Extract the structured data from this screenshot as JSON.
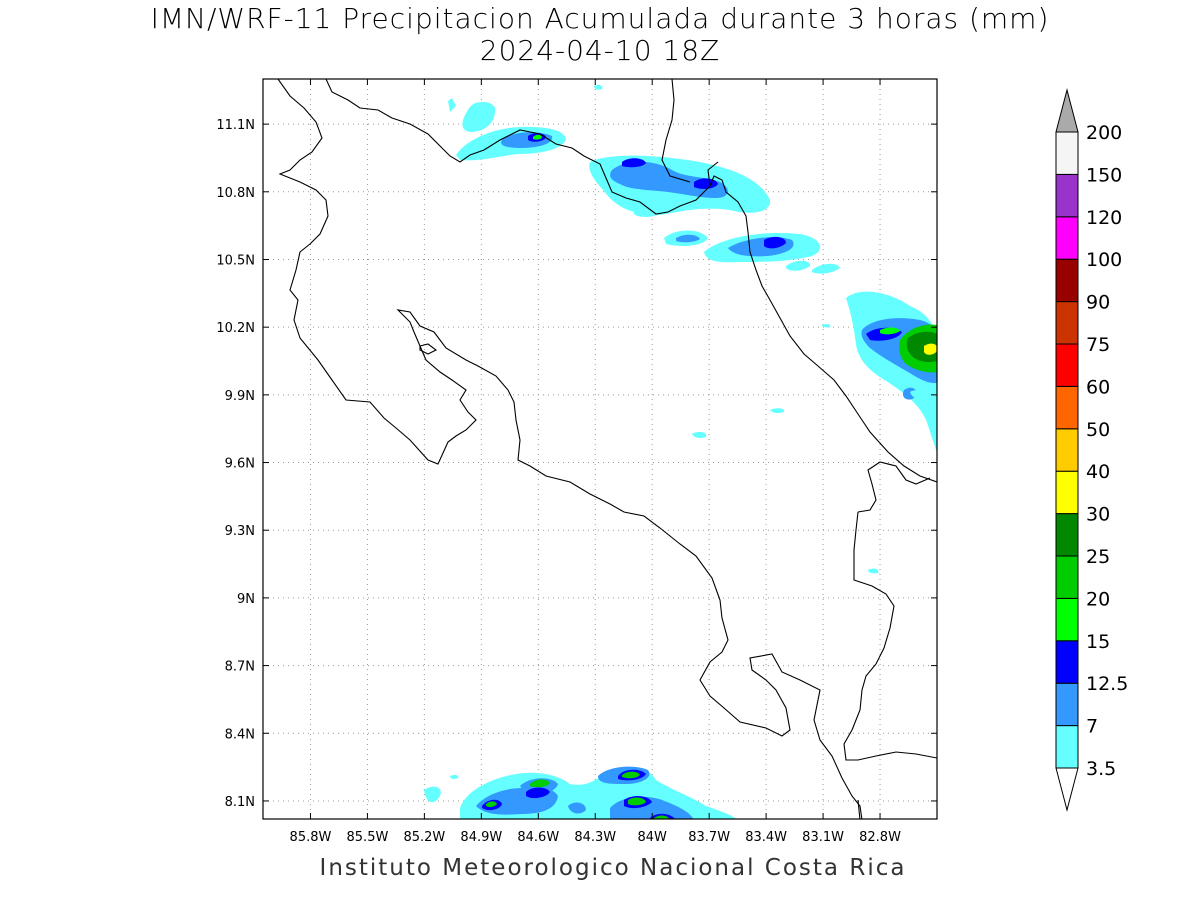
{
  "title": "IMN/WRF-11 Precipitacion Acumulada durante 3 horas (mm)",
  "subtitle": "2024-04-10 18Z",
  "footer": "Instituto Meteorologico Nacional Costa Rica",
  "map": {
    "lon_range": [
      -86.05,
      -82.5
    ],
    "lat_range": [
      8.02,
      11.3
    ],
    "lon_ticks": [
      "85.8W",
      "85.5W",
      "85.2W",
      "84.9W",
      "84.6W",
      "84.3W",
      "84W",
      "83.7W",
      "83.4W",
      "83.1W",
      "82.8W"
    ],
    "lon_values": [
      -85.8,
      -85.5,
      -85.2,
      -84.9,
      -84.6,
      -84.3,
      -84.0,
      -83.7,
      -83.4,
      -83.1,
      -82.8
    ],
    "lat_ticks": [
      "11.1N",
      "10.8N",
      "10.5N",
      "10.2N",
      "9.9N",
      "9.6N",
      "9.3N",
      "9N",
      "8.7N",
      "8.4N",
      "8.1N"
    ],
    "lat_values": [
      11.1,
      10.8,
      10.5,
      10.2,
      9.9,
      9.6,
      9.3,
      9.0,
      8.7,
      8.4,
      8.1
    ],
    "grid": "dotted"
  },
  "colorbar": {
    "labels": [
      "3.5",
      "7",
      "12.5",
      "15",
      "20",
      "25",
      "30",
      "40",
      "50",
      "60",
      "75",
      "90",
      "100",
      "120",
      "150",
      "200"
    ],
    "colors": [
      "#66ffff",
      "#3399ff",
      "#0000ff",
      "#00ff00",
      "#00cc00",
      "#008800",
      "#ffff00",
      "#ffcc00",
      "#ff6600",
      "#ff0000",
      "#cc3300",
      "#990000",
      "#ff00ff",
      "#9933cc",
      "#f5f5f5"
    ],
    "over_color": "#aaaaaa",
    "under_color": "#ffffff"
  }
}
